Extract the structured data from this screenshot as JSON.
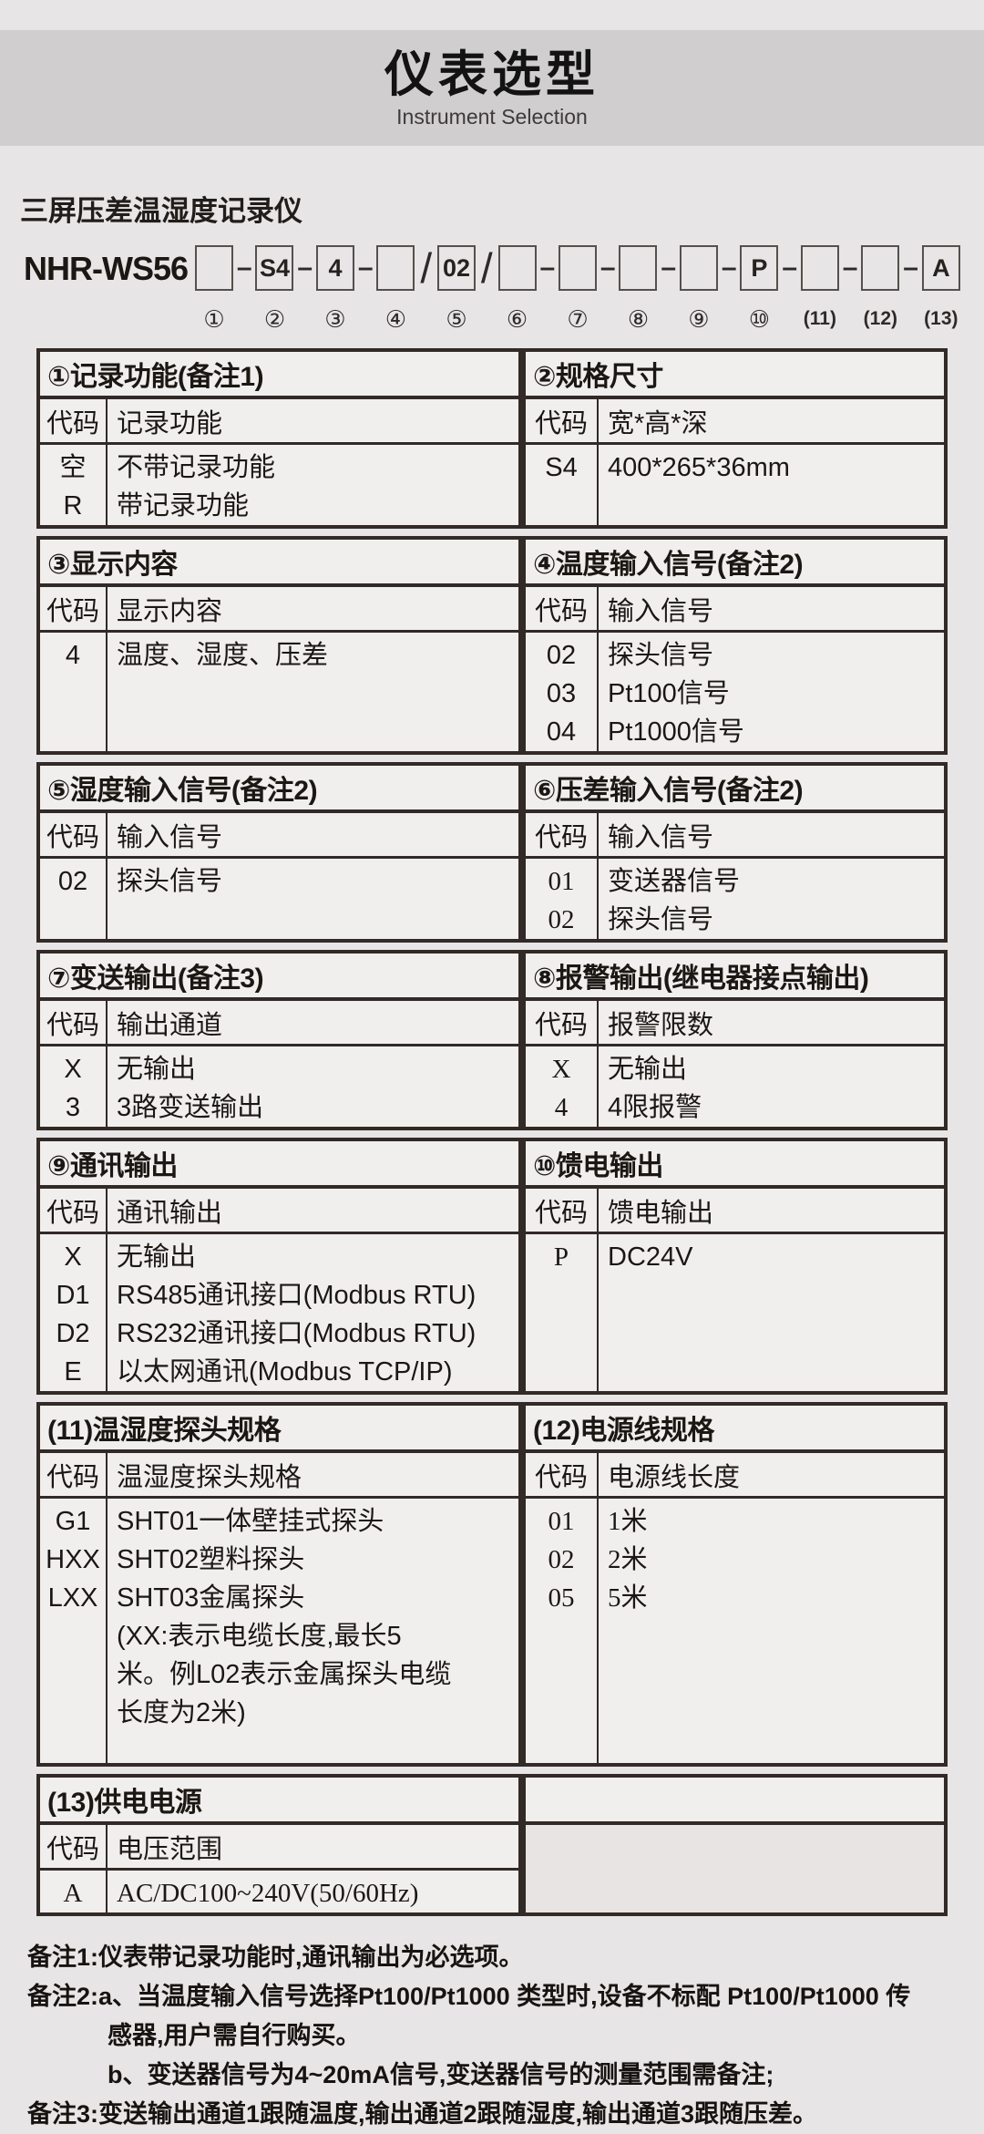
{
  "header": {
    "title": "仪表选型",
    "subtitle": "Instrument Selection"
  },
  "product": {
    "name": "三屏压差温湿度记录仪"
  },
  "model": {
    "prefix": "NHR-WS56",
    "slots": [
      {
        "num": "①",
        "value": "",
        "sep": "–"
      },
      {
        "num": "②",
        "value": "S4",
        "sep": "–"
      },
      {
        "num": "③",
        "value": "4",
        "sep": "–"
      },
      {
        "num": "④",
        "value": "",
        "sep": "/"
      },
      {
        "num": "⑤",
        "value": "02",
        "sep": "/"
      },
      {
        "num": "⑥",
        "value": "",
        "sep": "–"
      },
      {
        "num": "⑦",
        "value": "",
        "sep": "–"
      },
      {
        "num": "⑧",
        "value": "",
        "sep": "–"
      },
      {
        "num": "⑨",
        "value": "",
        "sep": "–"
      },
      {
        "num": "⑩",
        "value": "P",
        "sep": "–"
      },
      {
        "num": "(11)",
        "value": "",
        "sep": "–"
      },
      {
        "num": "(12)",
        "value": "",
        "sep": "–"
      },
      {
        "num": "(13)",
        "value": "A",
        "sep": ""
      }
    ]
  },
  "bands": [
    {
      "body_h": 84,
      "left": {
        "title": "①记录功能(备注1)",
        "head": [
          "代码",
          "记录功能"
        ],
        "codes": [
          "空",
          "R"
        ],
        "values": [
          "不带记录功能",
          "带记录功能"
        ]
      },
      "right": {
        "title": "②规格尺寸",
        "head": [
          "代码",
          "宽*高*深"
        ],
        "codes": [
          "S4"
        ],
        "values": [
          "400*265*36mm"
        ]
      }
    },
    {
      "body_h": 128,
      "left": {
        "title": "③显示内容",
        "head": [
          "代码",
          "显示内容"
        ],
        "codes": [
          "4"
        ],
        "values": [
          "温度、湿度、压差"
        ]
      },
      "right": {
        "title": "④温度输入信号(备注2)",
        "head": [
          "代码",
          "输入信号"
        ],
        "codes": [
          "02",
          "03",
          "04"
        ],
        "values": [
          "探头信号",
          "Pt100信号",
          "Pt1000信号"
        ]
      }
    },
    {
      "body_h": 84,
      "left": {
        "title": "⑤湿度输入信号(备注2)",
        "head": [
          "代码",
          "输入信号"
        ],
        "codes": [
          "02"
        ],
        "values": [
          "探头信号"
        ]
      },
      "right": {
        "title": "⑥压差输入信号(备注2)",
        "head": [
          "代码",
          "输入信号"
        ],
        "codes": [
          "01",
          "02"
        ],
        "values": [
          "变送器信号",
          "探头信号"
        ],
        "serif_codes": true,
        "serif_values": true
      }
    },
    {
      "body_h": 84,
      "left": {
        "title": "⑦变送输出(备注3)",
        "head": [
          "代码",
          "输出通道"
        ],
        "codes": [
          "X",
          "3"
        ],
        "values": [
          "无输出",
          "3路变送输出"
        ]
      },
      "right": {
        "title": "⑧报警输出(继电器接点输出)",
        "head": [
          "代码",
          "报警限数"
        ],
        "codes": [
          "X",
          "4"
        ],
        "values": [
          "无输出",
          "4限报警"
        ],
        "serif_codes": true
      }
    },
    {
      "body_h": 172,
      "left": {
        "title": "⑨通讯输出",
        "head": [
          "代码",
          "通讯输出"
        ],
        "codes": [
          "X",
          "D1",
          "D2",
          "E"
        ],
        "values": [
          "无输出",
          "RS485通讯接口(Modbus RTU)",
          "RS232通讯接口(Modbus RTU)",
          "以太网通讯(Modbus TCP/IP)"
        ]
      },
      "right": {
        "title": "⑩馈电输出",
        "head": [
          "代码",
          "馈电输出"
        ],
        "codes": [
          "P"
        ],
        "values": [
          "DC24V"
        ],
        "serif_codes": true
      }
    },
    {
      "body_h": 290,
      "left": {
        "title": "(11)温湿度探头规格",
        "head": [
          "代码",
          "温湿度探头规格"
        ],
        "codes": [
          "G1",
          "HXX",
          "LXX"
        ],
        "values": [
          "SHT01一体壁挂式探头",
          "SHT02塑料探头",
          "SHT03金属探头",
          "(XX:表示电缆长度,最长5",
          "米。例L02表示金属探头电缆",
          "长度为2米)"
        ]
      },
      "right": {
        "title": "(12)电源线规格",
        "head": [
          "代码",
          "电源线长度"
        ],
        "codes": [
          "01",
          "02",
          "05"
        ],
        "values": [
          "1米",
          "2米",
          "5米"
        ],
        "serif_codes": true,
        "serif_values": true
      }
    },
    {
      "body_h": 44,
      "left": {
        "title": "(13)供电电源",
        "head": [
          "代码",
          "电压范围"
        ],
        "codes": [
          "A"
        ],
        "values": [
          "AC/DC100~240V(50/60Hz)"
        ],
        "serif_codes": true,
        "serif_values": true,
        "serif_valhead": true
      },
      "right": null
    }
  ],
  "notes": [
    {
      "text": "备注1:仪表带记录功能时,通讯输出为必选项。",
      "indent": 0
    },
    {
      "text": "备注2:a、当温度输入信号选择Pt100/Pt1000 类型时,设备不标配 Pt100/Pt1000 传",
      "indent": 0
    },
    {
      "text": "感器,用户需自行购买。",
      "indent": 1
    },
    {
      "text": "b、变送器信号为4~20mA信号,变送器信号的测量范围需备注;",
      "indent": 1
    },
    {
      "text": "备注3:变送输出通道1跟随温度,输出通道2跟随湿度,输出通道3跟随压差。",
      "indent": 0
    }
  ],
  "colors": {
    "page_bg": "#e7e5e6",
    "band_bg": "#d0cecf",
    "cell_bg": "#f0efee",
    "border": "#322a27",
    "shell_body_bg": "#e7e4e3"
  }
}
